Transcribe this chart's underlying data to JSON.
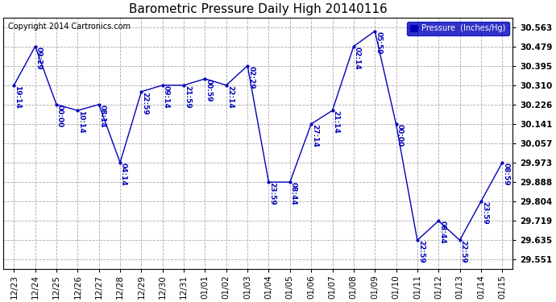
{
  "title": "Barometric Pressure Daily High 20140116",
  "copyright": "Copyright 2014 Cartronics.com",
  "legend_label": "Pressure  (Inches/Hg)",
  "x_labels": [
    "12/23",
    "12/24",
    "12/25",
    "12/26",
    "12/27",
    "12/28",
    "12/29",
    "12/30",
    "12/31",
    "01/01",
    "01/02",
    "01/03",
    "01/04",
    "01/05",
    "01/06",
    "01/07",
    "01/08",
    "01/09",
    "01/10",
    "01/11",
    "01/12",
    "01/13",
    "01/14",
    "01/15"
  ],
  "y_values": [
    30.31,
    30.479,
    30.226,
    30.2,
    30.226,
    29.973,
    30.282,
    30.31,
    30.31,
    30.338,
    30.31,
    30.395,
    29.888,
    29.888,
    30.141,
    30.2,
    30.479,
    30.546,
    30.141,
    29.635,
    29.719,
    29.635,
    29.804,
    29.973
  ],
  "point_labels": [
    "19:14",
    "09:29",
    "00:00",
    "10:14",
    "08:14",
    "04:14",
    "22:59",
    "09:14",
    "21:59",
    "00:59",
    "22:14",
    "02:29",
    "23:59",
    "08:44",
    "27:14",
    "21:14",
    "02:14",
    "05:59",
    "00:00",
    "22:59",
    "08:44",
    "22:59",
    "23:59",
    "08:59"
  ],
  "y_ticks": [
    29.551,
    29.635,
    29.719,
    29.804,
    29.888,
    29.973,
    30.057,
    30.141,
    30.226,
    30.31,
    30.395,
    30.479,
    30.563
  ],
  "ylim_min": 29.51,
  "ylim_max": 30.605,
  "line_color": "#0000bb",
  "marker_color": "#0000bb",
  "label_color": "#0000bb",
  "background_color": "#ffffff",
  "grid_color": "#aaaaaa",
  "title_fontsize": 11,
  "tick_fontsize": 7.5,
  "label_fontsize": 6.5,
  "copyright_fontsize": 7
}
